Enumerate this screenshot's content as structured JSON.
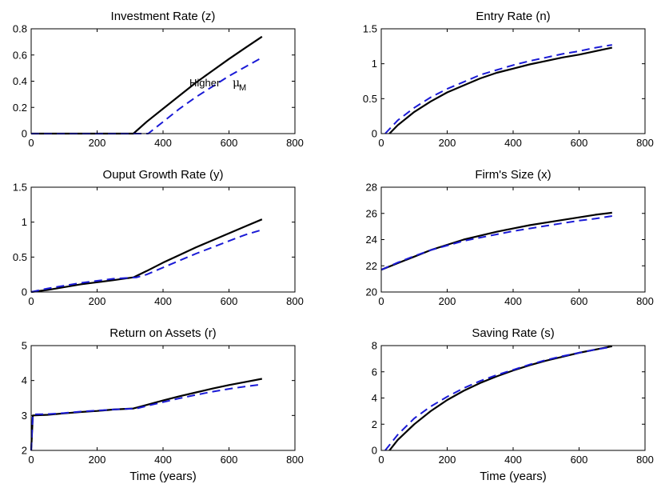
{
  "chart_data": [
    {
      "type": "line",
      "title": "Investment Rate (z)",
      "xlabel": "",
      "xlim": [
        0,
        800
      ],
      "ylim": [
        0,
        0.8
      ],
      "xticks": [
        "0",
        "200",
        "400",
        "600",
        "800"
      ],
      "yticks": [
        "0",
        "0.2",
        "0.4",
        "0.6",
        "0.8"
      ],
      "annotation": {
        "text": "Higher",
        "symbol": "μ",
        "subscript": "M"
      },
      "series": [
        {
          "style": "solid",
          "color": "#000000",
          "x": [
            0,
            200,
            310,
            350,
            400,
            450,
            500,
            550,
            600,
            650,
            700
          ],
          "y": [
            0,
            0,
            0,
            0.09,
            0.19,
            0.29,
            0.39,
            0.48,
            0.57,
            0.655,
            0.74
          ]
        },
        {
          "style": "dashed",
          "color": "#1a1ad6",
          "x": [
            0,
            200,
            310,
            355,
            400,
            450,
            500,
            550,
            600,
            650,
            700
          ],
          "y": [
            0,
            0,
            0,
            0,
            0.09,
            0.19,
            0.28,
            0.36,
            0.44,
            0.51,
            0.58
          ]
        }
      ]
    },
    {
      "type": "line",
      "title": "Entry Rate (n)",
      "xlabel": "",
      "xlim": [
        0,
        800
      ],
      "ylim": [
        0,
        1.5
      ],
      "xticks": [
        "0",
        "200",
        "400",
        "600",
        "800"
      ],
      "yticks": [
        "0",
        "0.5",
        "1",
        "1.5"
      ],
      "series": [
        {
          "style": "solid",
          "color": "#000000",
          "x": [
            25,
            50,
            100,
            150,
            200,
            250,
            300,
            350,
            400,
            450,
            500,
            550,
            600,
            650,
            700
          ],
          "y": [
            0,
            0.12,
            0.31,
            0.46,
            0.59,
            0.69,
            0.79,
            0.87,
            0.93,
            0.99,
            1.04,
            1.09,
            1.13,
            1.18,
            1.23
          ]
        },
        {
          "style": "dashed",
          "color": "#1a1ad6",
          "x": [
            12,
            50,
            100,
            150,
            200,
            250,
            300,
            350,
            400,
            450,
            500,
            550,
            600,
            650,
            700
          ],
          "y": [
            0,
            0.19,
            0.37,
            0.52,
            0.64,
            0.74,
            0.84,
            0.91,
            0.98,
            1.04,
            1.09,
            1.14,
            1.18,
            1.23,
            1.27
          ]
        }
      ]
    },
    {
      "type": "line",
      "title": "Ouput Growth Rate (y)",
      "xlabel": "",
      "xlim": [
        0,
        800
      ],
      "ylim": [
        0,
        1.5
      ],
      "xticks": [
        "0",
        "200",
        "400",
        "600",
        "800"
      ],
      "yticks": [
        "0",
        "0.5",
        "1",
        "1.5"
      ],
      "series": [
        {
          "style": "solid",
          "color": "#000000",
          "x": [
            0,
            50,
            100,
            150,
            200,
            250,
            310,
            350,
            400,
            450,
            500,
            550,
            600,
            650,
            700
          ],
          "y": [
            0,
            0.03,
            0.07,
            0.11,
            0.14,
            0.17,
            0.21,
            0.3,
            0.42,
            0.53,
            0.64,
            0.74,
            0.84,
            0.94,
            1.04
          ]
        },
        {
          "style": "dashed",
          "color": "#1a1ad6",
          "x": [
            0,
            50,
            100,
            150,
            200,
            250,
            320,
            350,
            400,
            450,
            500,
            550,
            600,
            650,
            700
          ],
          "y": [
            0,
            0.05,
            0.09,
            0.13,
            0.16,
            0.19,
            0.21,
            0.25,
            0.35,
            0.45,
            0.55,
            0.64,
            0.73,
            0.82,
            0.89
          ]
        }
      ]
    },
    {
      "type": "line",
      "title": "Firm's Size (x)",
      "xlabel": "",
      "xlim": [
        0,
        800
      ],
      "ylim": [
        20,
        28
      ],
      "xticks": [
        "0",
        "200",
        "400",
        "600",
        "800"
      ],
      "yticks": [
        "20",
        "22",
        "24",
        "26",
        "28"
      ],
      "series": [
        {
          "style": "solid",
          "color": "#000000",
          "x": [
            0,
            50,
            100,
            150,
            200,
            250,
            300,
            350,
            400,
            450,
            500,
            550,
            600,
            650,
            700
          ],
          "y": [
            21.7,
            22.2,
            22.7,
            23.2,
            23.6,
            24.0,
            24.3,
            24.6,
            24.85,
            25.1,
            25.3,
            25.5,
            25.7,
            25.9,
            26.05
          ]
        },
        {
          "style": "dashed",
          "color": "#1a1ad6",
          "x": [
            0,
            50,
            100,
            150,
            200,
            250,
            300,
            350,
            400,
            450,
            500,
            550,
            600,
            650,
            700
          ],
          "y": [
            21.7,
            22.25,
            22.75,
            23.2,
            23.55,
            23.9,
            24.15,
            24.4,
            24.65,
            24.85,
            25.05,
            25.25,
            25.45,
            25.6,
            25.8
          ]
        }
      ]
    },
    {
      "type": "line",
      "title": "Return on Assets (r)",
      "xlabel": "Time (years)",
      "xlim": [
        0,
        800
      ],
      "ylim": [
        2,
        5
      ],
      "xticks": [
        "0",
        "200",
        "400",
        "600",
        "800"
      ],
      "yticks": [
        "2",
        "3",
        "4",
        "5"
      ],
      "series": [
        {
          "style": "solid",
          "color": "#000000",
          "x": [
            0,
            5,
            50,
            100,
            150,
            200,
            250,
            310,
            350,
            400,
            450,
            500,
            550,
            600,
            650,
            700
          ],
          "y": [
            2.0,
            3.0,
            3.02,
            3.06,
            3.1,
            3.13,
            3.17,
            3.2,
            3.3,
            3.43,
            3.55,
            3.66,
            3.77,
            3.87,
            3.96,
            4.05
          ]
        },
        {
          "style": "dashed",
          "color": "#1a1ad6",
          "x": [
            0,
            5,
            50,
            100,
            150,
            200,
            250,
            320,
            350,
            400,
            450,
            500,
            550,
            600,
            650,
            700
          ],
          "y": [
            2.0,
            3.03,
            3.04,
            3.07,
            3.11,
            3.14,
            3.17,
            3.2,
            3.27,
            3.38,
            3.49,
            3.59,
            3.68,
            3.76,
            3.83,
            3.89
          ]
        }
      ]
    },
    {
      "type": "line",
      "title": "Saving Rate (s)",
      "xlabel": "Time (years)",
      "xlim": [
        0,
        800
      ],
      "ylim": [
        0,
        8
      ],
      "xticks": [
        "0",
        "200",
        "400",
        "600",
        "800"
      ],
      "yticks": [
        "0",
        "2",
        "4",
        "6",
        "8"
      ],
      "series": [
        {
          "style": "solid",
          "color": "#000000",
          "x": [
            25,
            50,
            100,
            150,
            200,
            250,
            300,
            350,
            400,
            450,
            500,
            550,
            600,
            650,
            700
          ],
          "y": [
            0,
            0.8,
            2.0,
            3.0,
            3.85,
            4.55,
            5.15,
            5.65,
            6.1,
            6.5,
            6.85,
            7.15,
            7.45,
            7.7,
            7.95
          ]
        },
        {
          "style": "dashed",
          "color": "#1a1ad6",
          "x": [
            12,
            50,
            100,
            150,
            200,
            250,
            300,
            350,
            400,
            450,
            500,
            550,
            600,
            650,
            700
          ],
          "y": [
            0,
            1.2,
            2.45,
            3.35,
            4.1,
            4.75,
            5.3,
            5.75,
            6.15,
            6.55,
            6.9,
            7.2,
            7.45,
            7.7,
            7.9
          ]
        }
      ]
    }
  ]
}
